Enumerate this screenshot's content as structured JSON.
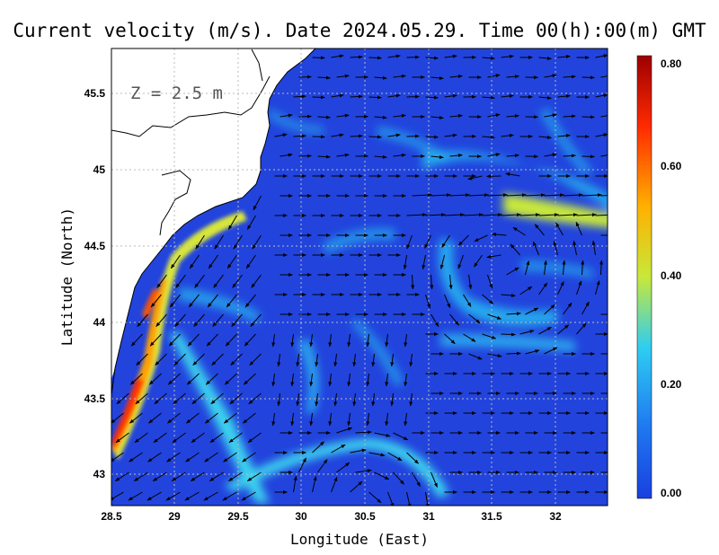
{
  "title": "Current velocity (m/s). Date 2024.05.29. Time 00(h):00(m) GMT",
  "depth_label": "Z = 2.5 m",
  "x_axis": {
    "label": "Longitude (East)",
    "ticks": [
      "28.5",
      "29",
      "29.5",
      "30",
      "30.5",
      "31",
      "31.5",
      "32"
    ],
    "range": [
      28.5,
      32.45
    ]
  },
  "y_axis": {
    "label": "Latitude (North)",
    "ticks": [
      "43",
      "43.5",
      "44",
      "44.5",
      "45",
      "45.5"
    ],
    "range": [
      42.8,
      45.8
    ]
  },
  "colorbar": {
    "ticks": [
      "0.00",
      "0.20",
      "0.40",
      "0.60",
      "0.80"
    ],
    "range": [
      0,
      0.8
    ],
    "colors": [
      "#1a3fe0",
      "#1f78f0",
      "#2ecdf2",
      "#c8e83a",
      "#ffb000",
      "#ff2a00",
      "#9c0000"
    ]
  },
  "colors": {
    "sea_background": "#2244dd",
    "land": "#ffffff",
    "coastline": "#000000",
    "grid": "#bbbbbb"
  }
}
